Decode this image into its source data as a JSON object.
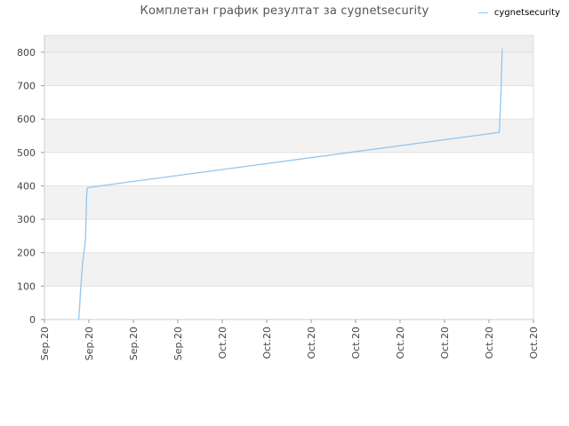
{
  "chart_data": {
    "type": "line",
    "title": "Комплетан график резултат за cygnetsecurity",
    "xlabel": "",
    "ylabel": "",
    "x_tick_labels": [
      "Sep.20",
      "Sep.20",
      "Sep.20",
      "Sep.20",
      "Oct.20",
      "Oct.20",
      "Oct.20",
      "Oct.20",
      "Oct.20",
      "Oct.20",
      "Oct.20",
      "Oct.20"
    ],
    "ylim": [
      0,
      850
    ],
    "y_ticks": [
      0,
      100,
      200,
      300,
      400,
      500,
      600,
      700,
      800
    ],
    "grid": true,
    "legend_position": "top-right",
    "colors": {
      "series": "#93c5ee",
      "band": "#f2f2f2",
      "top_band": "#eeeeee",
      "grid": "#e2e2e2"
    },
    "series": [
      {
        "name": "cygnetsecurity",
        "x_fraction": [
          0.07,
          0.072,
          0.074,
          0.076,
          0.078,
          0.08,
          0.082,
          0.084,
          0.086,
          0.087,
          0.089,
          0.93,
          0.932,
          0.934,
          0.936
        ],
        "values": [
          0,
          40,
          90,
          130,
          170,
          190,
          215,
          240,
          360,
          390,
          395,
          560,
          620,
          700,
          810
        ]
      }
    ]
  }
}
